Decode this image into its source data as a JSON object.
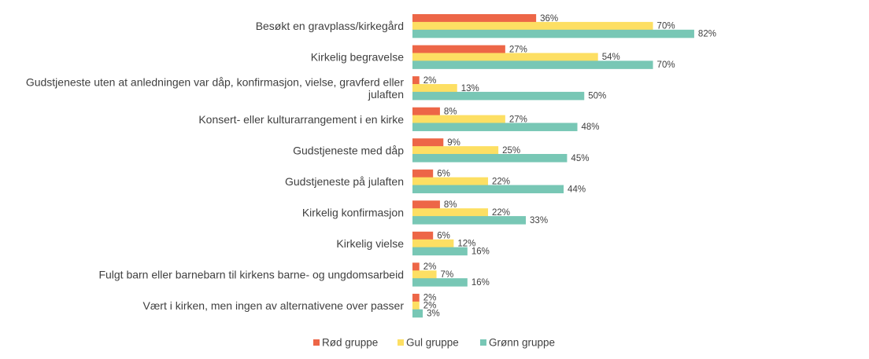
{
  "chart_data": {
    "type": "bar",
    "orientation": "horizontal",
    "categories": [
      [
        "Besøkt en gravplass/kirkegård"
      ],
      [
        "Kirkelig begravelse"
      ],
      [
        "Gudstjeneste uten at anledningen var dåp, konfirmasjon, vielse, gravferd eller",
        "julaften"
      ],
      [
        "Konsert- eller kulturarrangement i en kirke"
      ],
      [
        "Gudstjeneste med dåp"
      ],
      [
        "Gudstjeneste på julaften"
      ],
      [
        "Kirkelig konfirmasjon"
      ],
      [
        "Kirkelig vielse"
      ],
      [
        "Fulgt barn eller barnebarn til kirkens barne- og ungdomsarbeid"
      ],
      [
        "Vært i kirken, men ingen av alternativene over passer"
      ]
    ],
    "series": [
      {
        "name": "Rød gruppe",
        "color": "#ED6647",
        "values": [
          36,
          27,
          2,
          8,
          9,
          6,
          8,
          6,
          2,
          2
        ],
        "labels": [
          "36%",
          "27%",
          "2%",
          "8%",
          "9%",
          "6%",
          "8%",
          "6%",
          "2%",
          "2%"
        ]
      },
      {
        "name": "Gul gruppe",
        "color": "#FDDF63",
        "values": [
          70,
          54,
          13,
          27,
          25,
          22,
          22,
          12,
          7,
          2
        ],
        "labels": [
          "70%",
          "54%",
          "13%",
          "27%",
          "25%",
          "22%",
          "22%",
          "12%",
          "7%",
          "2%"
        ]
      },
      {
        "name": "Grønn gruppe",
        "color": "#78C7B5",
        "values": [
          82,
          70,
          50,
          48,
          45,
          44,
          33,
          16,
          16,
          3
        ],
        "labels": [
          "82%",
          "70%",
          "50%",
          "48%",
          "45%",
          "44%",
          "33%",
          "16%",
          "16%",
          "3%"
        ]
      }
    ],
    "xlim": [
      0,
      100
    ],
    "grid": false,
    "legend_position": "bottom"
  }
}
